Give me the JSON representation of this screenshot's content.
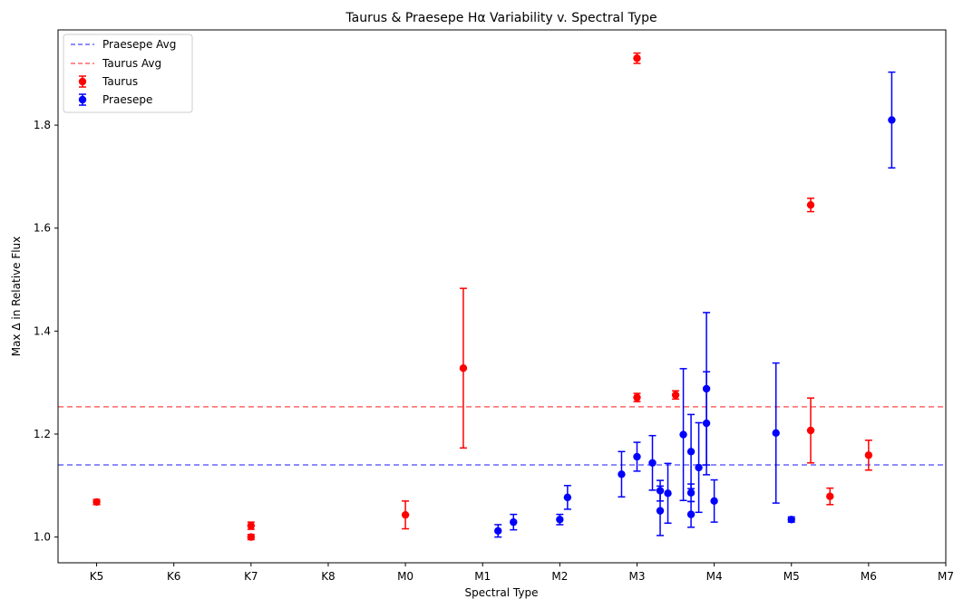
{
  "chart_data": {
    "type": "scatter",
    "title": "Taurus & Praesepe Hα Variability v. Spectral Type",
    "xlabel": "Spectral Type",
    "ylabel": "Max Δ in Relative Flux",
    "x_ticks": [
      "K5",
      "K6",
      "K7",
      "K8",
      "M0",
      "M1",
      "M2",
      "M3",
      "M4",
      "M5",
      "M6",
      "M7"
    ],
    "xlim": [
      -0.5,
      11
    ],
    "ylim": [
      0.95,
      1.985
    ],
    "y_ticks": [
      1.0,
      1.2,
      1.4,
      1.6,
      1.8
    ],
    "y_tick_labels": [
      "1.0",
      "1.2",
      "1.4",
      "1.6",
      "1.8"
    ],
    "grid": false,
    "legend_position": "top-left",
    "colors": {
      "taurus": "#ff0000",
      "praesepe": "#0000ff",
      "taurus_avg": "#ff6666",
      "praesepe_avg": "#6666ff"
    },
    "hlines": [
      {
        "name": "Praesepe Avg",
        "y": 1.14,
        "color": "#6666ff"
      },
      {
        "name": "Taurus Avg",
        "y": 1.253,
        "color": "#ff6666"
      }
    ],
    "series": [
      {
        "name": "Taurus",
        "color": "#ff0000",
        "points": [
          {
            "x": 0.0,
            "y": 1.068,
            "err": 0.005
          },
          {
            "x": 2.0,
            "y": 1.022,
            "err": 0.007
          },
          {
            "x": 2.0,
            "y": 1.0,
            "err": 0.005
          },
          {
            "x": 4.0,
            "y": 1.043,
            "err": 0.027
          },
          {
            "x": 4.75,
            "y": 1.328,
            "err": 0.155
          },
          {
            "x": 7.0,
            "y": 1.93,
            "err": 0.01
          },
          {
            "x": 7.0,
            "y": 1.271,
            "err": 0.008
          },
          {
            "x": 7.5,
            "y": 1.276,
            "err": 0.008
          },
          {
            "x": 9.25,
            "y": 1.645,
            "err": 0.013
          },
          {
            "x": 9.25,
            "y": 1.207,
            "err": 0.063
          },
          {
            "x": 9.5,
            "y": 1.079,
            "err": 0.016
          },
          {
            "x": 10.0,
            "y": 1.159,
            "err": 0.029
          }
        ]
      },
      {
        "name": "Praesepe",
        "color": "#0000ff",
        "points": [
          {
            "x": 5.2,
            "y": 1.012,
            "err": 0.012
          },
          {
            "x": 5.4,
            "y": 1.029,
            "err": 0.015
          },
          {
            "x": 6.0,
            "y": 1.034,
            "err": 0.01
          },
          {
            "x": 6.1,
            "y": 1.077,
            "err": 0.023
          },
          {
            "x": 6.8,
            "y": 1.122,
            "err": 0.044
          },
          {
            "x": 7.0,
            "y": 1.156,
            "err": 0.028
          },
          {
            "x": 7.2,
            "y": 1.144,
            "err": 0.053
          },
          {
            "x": 7.3,
            "y": 1.09,
            "err": 0.02
          },
          {
            "x": 7.3,
            "y": 1.051,
            "err": 0.048
          },
          {
            "x": 7.4,
            "y": 1.085,
            "err": 0.058
          },
          {
            "x": 7.6,
            "y": 1.199,
            "err": 0.128
          },
          {
            "x": 7.7,
            "y": 1.166,
            "err": 0.072
          },
          {
            "x": 7.7,
            "y": 1.086,
            "err": 0.017
          },
          {
            "x": 7.7,
            "y": 1.044,
            "err": 0.025
          },
          {
            "x": 7.8,
            "y": 1.135,
            "err": 0.087
          },
          {
            "x": 7.9,
            "y": 1.288,
            "err": 0.148
          },
          {
            "x": 7.9,
            "y": 1.221,
            "err": 0.1
          },
          {
            "x": 8.0,
            "y": 1.07,
            "err": 0.041
          },
          {
            "x": 8.8,
            "y": 1.202,
            "err": 0.136
          },
          {
            "x": 9.0,
            "y": 1.034,
            "err": 0.005
          },
          {
            "x": 10.3,
            "y": 1.81,
            "err": 0.093
          }
        ]
      }
    ]
  }
}
